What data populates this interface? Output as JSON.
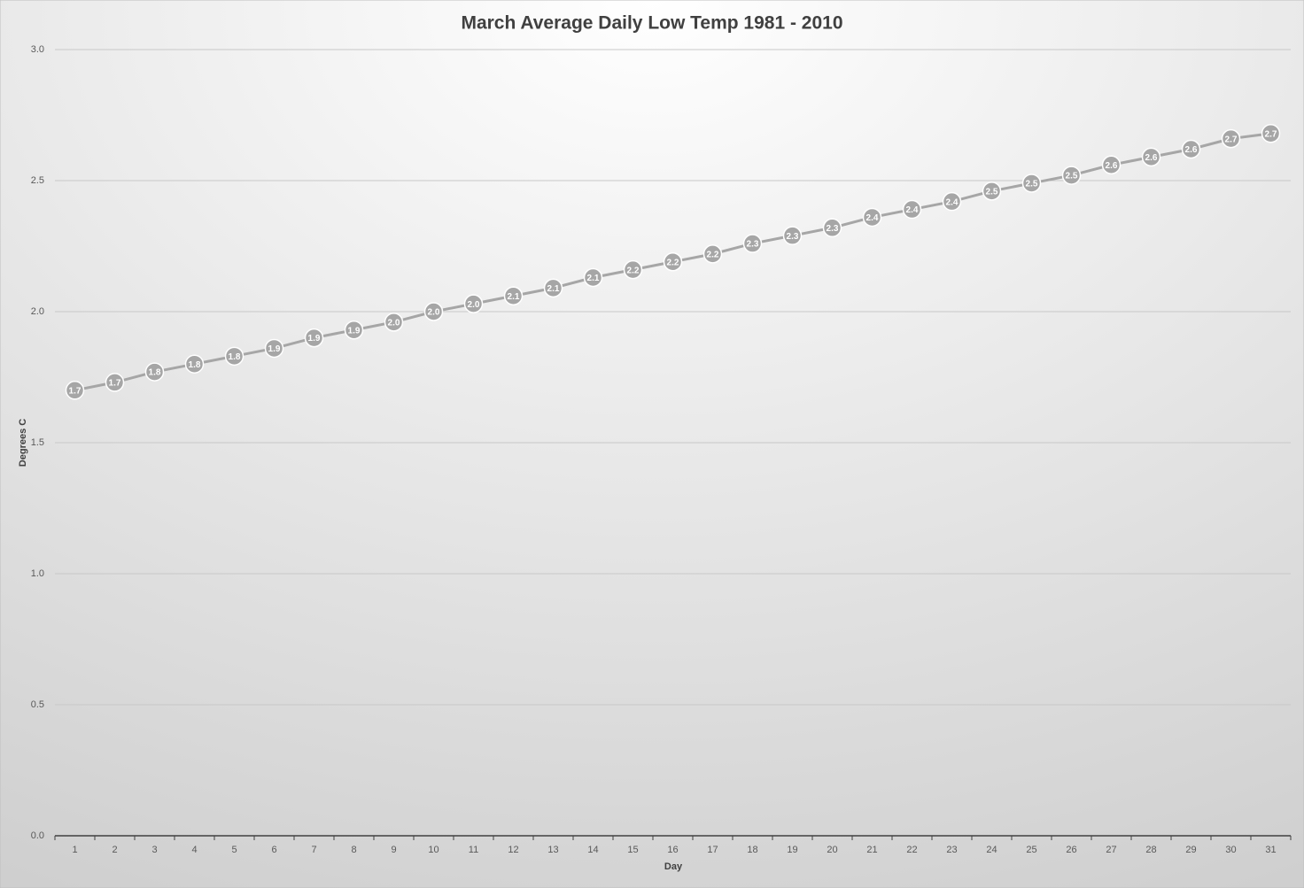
{
  "chart_data": {
    "type": "line",
    "title": "March Average Daily Low Temp 1981 - 2010",
    "x_label": "Day",
    "y_label": "Degrees C",
    "categories": [
      "1",
      "2",
      "3",
      "4",
      "5",
      "6",
      "7",
      "8",
      "9",
      "10",
      "11",
      "12",
      "13",
      "14",
      "15",
      "16",
      "17",
      "18",
      "19",
      "20",
      "21",
      "22",
      "23",
      "24",
      "25",
      "26",
      "27",
      "28",
      "29",
      "30",
      "31"
    ],
    "series": [
      {
        "name": "March Average Daily Low Temp",
        "color": "#a6a6a6",
        "values": [
          1.7,
          1.73,
          1.77,
          1.8,
          1.83,
          1.86,
          1.9,
          1.93,
          1.96,
          2.0,
          2.03,
          2.06,
          2.09,
          2.13,
          2.16,
          2.19,
          2.22,
          2.26,
          2.29,
          2.32,
          2.36,
          2.39,
          2.42,
          2.46,
          2.49,
          2.52,
          2.56,
          2.59,
          2.62,
          2.66,
          2.68
        ],
        "value_labels": [
          "1.7",
          "1.7",
          "1.8",
          "1.8",
          "1.8",
          "1.9",
          "1.9",
          "1.9",
          "2.0",
          "2.0",
          "2.0",
          "2.1",
          "2.1",
          "2.1",
          "2.2",
          "2.2",
          "2.2",
          "2.3",
          "2.3",
          "2.3",
          "2.4",
          "2.4",
          "2.4",
          "2.5",
          "2.5",
          "2.5",
          "2.6",
          "2.6",
          "2.6",
          "2.7",
          "2.7"
        ]
      }
    ],
    "ylim": [
      0,
      3
    ],
    "yticks": [
      {
        "value": 0,
        "label": "0.0"
      },
      0.5,
      {
        "value": 1,
        "label": "1.0"
      },
      1.5,
      {
        "value": 2,
        "label": "2.0"
      },
      2.5,
      {
        "value": 3,
        "label": "3.0"
      }
    ],
    "grid": true
  }
}
